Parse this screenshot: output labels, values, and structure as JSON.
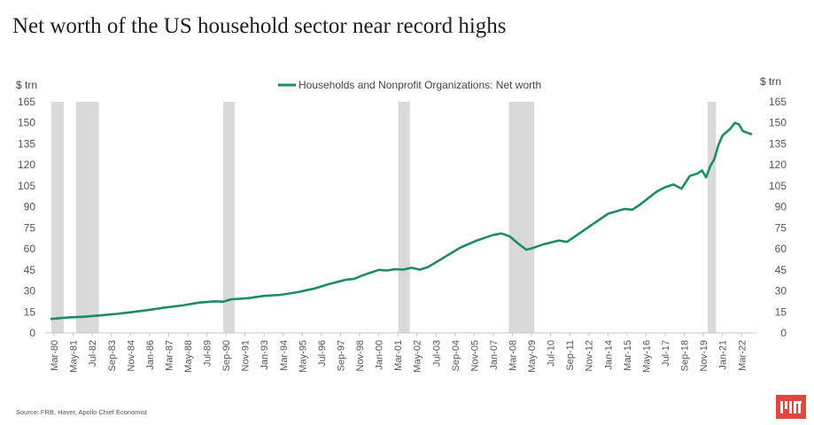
{
  "title": "Net worth of the US household sector near record highs",
  "source": "Source: FRB, Haver, Apollo Chief Economist",
  "brand": {
    "name": "MIT logo",
    "color": "#e0483e"
  },
  "chart_data": {
    "type": "line",
    "title": "Net worth of the US household sector near record highs",
    "ylabel_left": "$ trn",
    "ylabel_right": "$ trn",
    "ylim": [
      0,
      165
    ],
    "yticks": [
      0,
      15,
      30,
      45,
      60,
      75,
      90,
      105,
      120,
      135,
      150,
      165
    ],
    "legend": "top-center",
    "x_domain": [
      1980.0,
      2022.75
    ],
    "x_tick_labels": [
      "Mar-80",
      "May-81",
      "Jul-82",
      "Sep-83",
      "Nov-84",
      "Jan-86",
      "Mar-87",
      "May-88",
      "Jul-89",
      "Sep-90",
      "Nov-91",
      "Jan-93",
      "Mar-94",
      "May-95",
      "Jul-96",
      "Sep-97",
      "Nov-98",
      "Jan-00",
      "Mar-01",
      "May-02",
      "Jul-03",
      "Sep-04",
      "Nov-05",
      "Jan-07",
      "Mar-08",
      "May-09",
      "Jul-10",
      "Sep-11",
      "Nov-12",
      "Jan-14",
      "Mar-15",
      "May-16",
      "Jul-17",
      "Sep-18",
      "Nov-19",
      "Jan-21",
      "Mar-22"
    ],
    "x_tick_values": [
      1980.17,
      1981.33,
      1982.5,
      1983.67,
      1984.83,
      1986.0,
      1987.17,
      1988.33,
      1989.5,
      1990.67,
      1991.83,
      1993.0,
      1994.17,
      1995.33,
      1996.5,
      1997.67,
      1998.83,
      2000.0,
      2001.17,
      2002.33,
      2003.5,
      2004.67,
      2005.83,
      2007.0,
      2008.17,
      2009.33,
      2010.5,
      2011.67,
      2012.83,
      2014.0,
      2015.17,
      2016.33,
      2017.5,
      2018.67,
      2019.83,
      2021.0,
      2022.17
    ],
    "recessions": [
      {
        "start": 1980.0,
        "end": 1980.75
      },
      {
        "start": 1981.5,
        "end": 1982.9
      },
      {
        "start": 1990.5,
        "end": 1991.2
      },
      {
        "start": 2001.2,
        "end": 2001.9
      },
      {
        "start": 2007.95,
        "end": 2009.5
      },
      {
        "start": 2020.1,
        "end": 2020.6
      }
    ],
    "series": [
      {
        "name": "Households and Nonprofit Organizations: Net worth",
        "color": "#1f8a6a",
        "x": [
          1980.0,
          1981.0,
          1982.0,
          1983.0,
          1984.0,
          1985.0,
          1986.0,
          1987.0,
          1988.0,
          1989.0,
          1990.0,
          1990.5,
          1991.0,
          1992.0,
          1993.0,
          1994.0,
          1995.0,
          1996.0,
          1997.0,
          1998.0,
          1998.5,
          1999.0,
          2000.0,
          2000.5,
          2001.0,
          2001.5,
          2002.0,
          2002.5,
          2003.0,
          2004.0,
          2005.0,
          2006.0,
          2007.0,
          2007.5,
          2008.0,
          2008.5,
          2009.0,
          2009.25,
          2010.0,
          2011.0,
          2011.5,
          2012.0,
          2013.0,
          2014.0,
          2015.0,
          2015.5,
          2016.0,
          2017.0,
          2017.5,
          2018.0,
          2018.5,
          2019.0,
          2019.5,
          2019.75,
          2020.0,
          2020.25,
          2020.5,
          2020.75,
          2021.0,
          2021.5,
          2021.75,
          2022.0,
          2022.25,
          2022.5,
          2022.75
        ],
        "values": [
          10,
          11,
          11.6,
          12.5,
          13.6,
          15,
          16.5,
          18.2,
          19.6,
          21.6,
          22.6,
          22.3,
          24,
          24.8,
          26.4,
          27.2,
          29,
          31.5,
          35,
          38,
          38.6,
          41,
          45,
          44.6,
          45.5,
          45.2,
          46.5,
          45.2,
          47,
          54,
          61,
          66,
          70,
          71,
          69,
          64,
          59.5,
          60,
          63,
          66,
          65,
          69,
          77,
          85,
          88.5,
          88,
          92,
          101,
          104,
          106,
          103,
          112,
          114,
          116,
          111,
          119,
          124,
          134,
          141,
          146,
          150,
          149,
          144,
          143,
          142
        ]
      }
    ]
  }
}
